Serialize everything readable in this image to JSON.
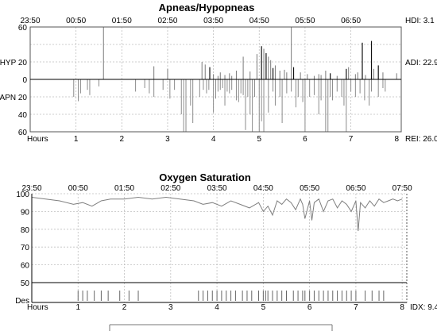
{
  "chart_data": [
    {
      "type": "bar",
      "title": "Apneas/Hypopneas",
      "time_ticks": [
        "23:50",
        "00:50",
        "01:50",
        "02:50",
        "03:50",
        "04:50",
        "05:50",
        "06:50"
      ],
      "hour_axis_label": "Hours",
      "hour_ticks": [
        "1",
        "2",
        "3",
        "4",
        "5",
        "6",
        "7",
        "8"
      ],
      "xlim": [
        0,
        8.1
      ],
      "ylim_hypopnea": [
        0,
        60
      ],
      "ylim_apnea": [
        0,
        60
      ],
      "y_tick_labels": [
        "60",
        "HYP 20",
        "0",
        "APN 20",
        "40",
        "60"
      ],
      "y_tick_values": [
        60,
        20,
        0,
        -20,
        -40,
        -60
      ],
      "right_labels": {
        "hdi": "HDI: 3.1",
        "adi": "ADI: 22.9",
        "rei": "REI: 26.0"
      },
      "series": [
        {
          "name": "HYP",
          "hours": [
            1.6,
            2.7,
            3.0,
            3.75,
            3.82,
            3.92,
            4.0,
            4.1,
            4.15,
            4.25,
            4.35,
            4.4,
            4.5,
            4.65,
            4.8,
            4.95,
            5.05,
            5.1,
            5.15,
            5.2,
            5.25,
            5.3,
            5.35,
            5.45,
            5.55,
            5.6,
            5.7,
            5.75,
            5.9,
            6.05,
            6.2,
            6.3,
            6.35,
            6.45,
            6.55,
            6.7,
            6.9,
            6.95,
            7.1,
            7.15,
            7.25,
            7.32,
            7.45,
            7.5,
            7.6,
            7.7,
            8.0
          ],
          "values": [
            60,
            15,
            12,
            20,
            17,
            14,
            6,
            4,
            8,
            5,
            7,
            4,
            10,
            26,
            9,
            29,
            38,
            35,
            30,
            26,
            22,
            13,
            16,
            10,
            11,
            8,
            60,
            14,
            8,
            6,
            4,
            6,
            5,
            10,
            7,
            4,
            12,
            14,
            6,
            8,
            42,
            5,
            44,
            12,
            16,
            8,
            7
          ],
          "dark": [
            false,
            false,
            false,
            false,
            false,
            true,
            false,
            false,
            false,
            false,
            false,
            false,
            false,
            false,
            false,
            false,
            true,
            false,
            true,
            false,
            false,
            true,
            false,
            false,
            false,
            false,
            false,
            true,
            false,
            false,
            false,
            false,
            false,
            false,
            true,
            false,
            true,
            false,
            false,
            false,
            true,
            false,
            true,
            false,
            true,
            false,
            false
          ]
        },
        {
          "name": "APN",
          "hours": [
            0.95,
            1.05,
            1.1,
            1.25,
            1.3,
            1.5,
            2.3,
            2.5,
            2.6,
            2.7,
            2.9,
            3.05,
            3.15,
            3.3,
            3.35,
            3.4,
            3.5,
            3.55,
            3.7,
            3.78,
            3.85,
            3.9,
            4.0,
            4.05,
            4.1,
            4.15,
            4.2,
            4.25,
            4.3,
            4.35,
            4.4,
            4.5,
            4.55,
            4.6,
            4.65,
            4.7,
            4.75,
            4.8,
            4.85,
            4.9,
            5.0,
            5.05,
            5.1,
            5.2,
            5.3,
            5.35,
            5.45,
            5.5,
            5.6,
            5.7,
            5.8,
            5.85,
            5.95,
            6.0,
            6.1,
            6.2,
            6.3,
            6.35,
            6.45,
            6.5,
            6.55,
            6.6,
            6.7,
            6.8,
            6.85,
            6.9,
            7.0,
            7.1,
            7.2,
            7.3,
            7.4,
            7.45,
            7.6,
            7.7,
            7.75
          ],
          "values": [
            20,
            25,
            16,
            12,
            18,
            8,
            14,
            10,
            16,
            20,
            12,
            22,
            12,
            40,
            62,
            64,
            30,
            50,
            20,
            12,
            16,
            12,
            38,
            22,
            14,
            12,
            10,
            30,
            14,
            16,
            12,
            24,
            26,
            16,
            18,
            58,
            20,
            40,
            64,
            20,
            62,
            48,
            64,
            38,
            14,
            30,
            20,
            50,
            16,
            14,
            32,
            20,
            26,
            64,
            20,
            18,
            40,
            24,
            62,
            64,
            20,
            24,
            14,
            20,
            30,
            62,
            14,
            20,
            16,
            24,
            30,
            14,
            20,
            10,
            14
          ]
        }
      ]
    },
    {
      "type": "line",
      "title": "Oxygen Saturation",
      "time_ticks": [
        "23:50",
        "00:50",
        "01:50",
        "02:50",
        "03:50",
        "04:50",
        "05:50",
        "06:50",
        "07:50"
      ],
      "hour_axis_label": "Hours",
      "hour_ticks": [
        "1",
        "2",
        "3",
        "4",
        "5",
        "6",
        "7",
        "8"
      ],
      "xlim": [
        0,
        8.1
      ],
      "ylim": [
        40,
        100
      ],
      "y_tick_labels": [
        "100",
        "90",
        "80",
        "70",
        "60",
        "50",
        "Des"
      ],
      "y_tick_values": [
        100,
        90,
        80,
        70,
        60,
        50
      ],
      "threshold": 50,
      "right_labels": {
        "idx": "IDX: 9.4"
      },
      "series": [
        {
          "name": "SpO2",
          "hours": [
            0,
            0.3,
            0.6,
            0.9,
            1.1,
            1.3,
            1.5,
            1.7,
            2.0,
            2.3,
            2.6,
            2.9,
            3.2,
            3.5,
            3.7,
            3.9,
            4.1,
            4.3,
            4.5,
            4.7,
            4.9,
            5.0,
            5.1,
            5.2,
            5.3,
            5.4,
            5.5,
            5.6,
            5.7,
            5.8,
            5.85,
            5.9,
            6.0,
            6.05,
            6.1,
            6.2,
            6.3,
            6.4,
            6.5,
            6.6,
            6.7,
            6.8,
            6.9,
            7.0,
            7.05,
            7.1,
            7.2,
            7.3,
            7.4,
            7.5,
            7.6,
            7.7,
            7.8,
            7.9,
            8.0
          ],
          "values": [
            98,
            97,
            96,
            94,
            95,
            93,
            96,
            97,
            97,
            98,
            97,
            98,
            97,
            96,
            94,
            95,
            93,
            96,
            94,
            92,
            95,
            90,
            93,
            88,
            96,
            94,
            97,
            95,
            91,
            97,
            94,
            86,
            96,
            85,
            95,
            97,
            90,
            96,
            97,
            92,
            96,
            94,
            90,
            96,
            79,
            95,
            92,
            96,
            93,
            97,
            95,
            96,
            97,
            96,
            97
          ]
        },
        {
          "name": "Des",
          "hours": [
            1.0,
            1.1,
            1.2,
            1.35,
            1.5,
            1.65,
            1.9,
            2.1,
            2.3,
            3.6,
            3.7,
            3.8,
            3.9,
            4.0,
            4.1,
            4.2,
            4.3,
            4.4,
            4.55,
            4.65,
            4.75,
            4.9,
            5.0,
            5.05,
            5.1,
            5.2,
            5.3,
            5.4,
            5.5,
            5.65,
            5.75,
            5.85,
            5.9,
            6.0,
            6.1,
            6.2,
            6.3,
            6.4,
            6.5,
            6.6,
            6.7,
            6.8,
            6.9,
            7.0,
            7.2,
            7.35,
            7.5,
            7.6
          ]
        }
      ]
    }
  ]
}
